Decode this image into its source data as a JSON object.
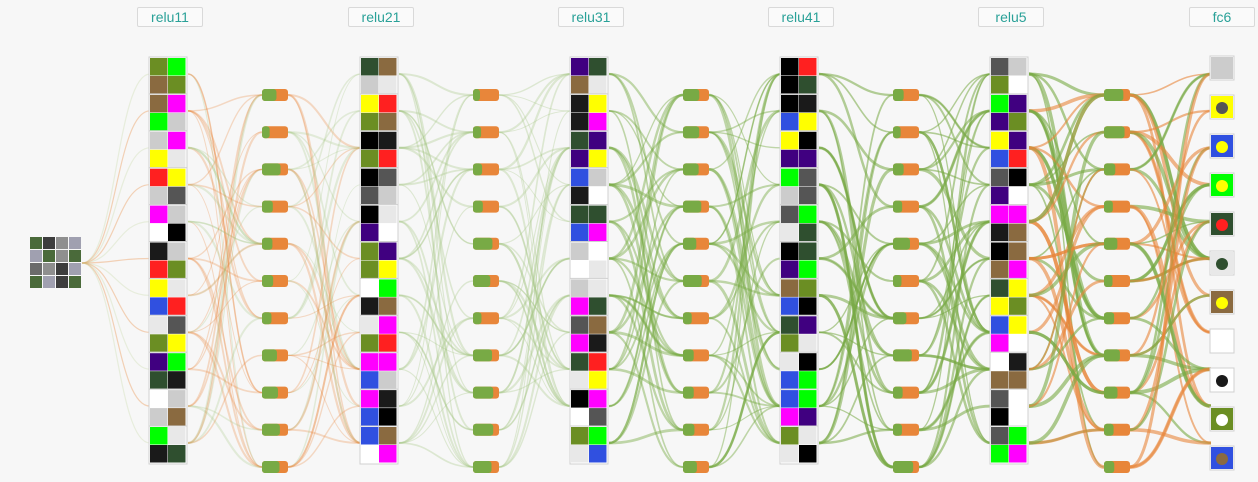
{
  "layers": [
    {
      "label": "relu11",
      "clusters": 11
    },
    {
      "label": "relu21",
      "clusters": 11
    },
    {
      "label": "relu31",
      "clusters": 11
    },
    {
      "label": "relu41",
      "clusters": 11
    },
    {
      "label": "relu5",
      "clusters": 11
    },
    {
      "label": "fc6",
      "clusters": 11
    }
  ],
  "colors": {
    "background": "#f7f7f7",
    "edge_orange": "#e8863a",
    "edge_green": "#78aa45",
    "node_green": "#78aa45",
    "node_orange": "#e8863a",
    "label_text": "#2aa198"
  },
  "input_icon": "image-grid-icon",
  "cluster_icon": "image-cluster-icon"
}
